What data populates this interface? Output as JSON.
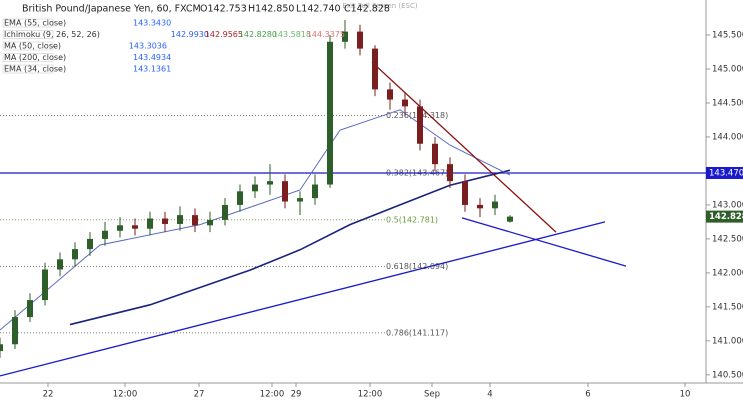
{
  "chart_data": {
    "type": "candlestick",
    "title": "British Pound/Japanese Yen, 60, FXCM",
    "ohlc_text": [
      "O142.753",
      "H142.850",
      "L142.740",
      "C142.828"
    ],
    "exit_text": "Exit Full Screen (ESC)",
    "indicators": [
      {
        "name": "EMA (55, close)",
        "values": [
          "143.3430"
        ],
        "color": "#2962ff"
      },
      {
        "name": "Ichimoku (9, 26, 52, 26)",
        "values": [
          "142.9930",
          "142.9565",
          "142.8280",
          "143.5818",
          "144.3375"
        ],
        "colors": [
          "#2962ff",
          "#b71c1c",
          "#43a047",
          "#66bb6a",
          "#e57373"
        ]
      },
      {
        "name": "MA (50, close)",
        "values": [
          "143.3036"
        ],
        "color": "#2962ff"
      },
      {
        "name": "MA (200, close)",
        "values": [
          "143.4934"
        ],
        "color": "#2962ff"
      },
      {
        "name": "EMA (34, close)",
        "values": [
          "143.1361"
        ],
        "color": "#2962ff"
      }
    ],
    "up_color": "#2e5e2a",
    "down_color": "#7a1f1f",
    "x": [
      0,
      3,
      6,
      9,
      12,
      15,
      18,
      21,
      24,
      27,
      30,
      33,
      36,
      39,
      42,
      45,
      48,
      51,
      54,
      57,
      60,
      63,
      66,
      69,
      72,
      75,
      78,
      81,
      84,
      87,
      90,
      93,
      96,
      99,
      102
    ],
    "open": [
      140.85,
      140.95,
      141.35,
      141.6,
      142.05,
      142.2,
      142.35,
      142.5,
      142.62,
      142.7,
      142.65,
      142.8,
      142.72,
      142.85,
      142.7,
      142.78,
      143.0,
      143.2,
      143.3,
      143.35,
      143.05,
      143.1,
      143.3,
      145.4,
      145.55,
      145.3,
      144.7,
      144.55,
      144.45,
      143.9,
      143.6,
      143.35,
      143.0,
      142.95,
      142.753
    ],
    "high": [
      141.05,
      141.45,
      141.7,
      142.15,
      142.3,
      142.45,
      142.6,
      142.75,
      142.82,
      142.8,
      142.9,
      142.9,
      142.98,
      142.95,
      142.9,
      143.1,
      143.3,
      143.42,
      143.6,
      143.45,
      143.2,
      143.45,
      145.5,
      145.72,
      145.65,
      145.35,
      144.8,
      144.65,
      144.55,
      144.0,
      143.7,
      143.45,
      143.1,
      143.15,
      142.85
    ],
    "low": [
      140.75,
      140.88,
      141.28,
      141.52,
      141.95,
      142.1,
      142.25,
      142.4,
      142.52,
      142.55,
      142.55,
      142.6,
      142.62,
      142.6,
      142.6,
      142.7,
      142.9,
      143.1,
      143.15,
      142.95,
      142.85,
      143.0,
      143.25,
      145.3,
      145.2,
      144.6,
      144.4,
      144.3,
      143.8,
      143.5,
      143.25,
      142.9,
      142.82,
      142.85,
      142.74
    ],
    "close": [
      140.95,
      141.35,
      141.6,
      142.05,
      142.2,
      142.35,
      142.5,
      142.62,
      142.7,
      142.65,
      142.8,
      142.72,
      142.85,
      142.7,
      142.78,
      143.0,
      143.2,
      143.3,
      143.35,
      143.05,
      143.1,
      143.3,
      145.4,
      145.55,
      145.3,
      144.7,
      144.55,
      144.45,
      143.9,
      143.6,
      143.35,
      143.0,
      142.95,
      143.05,
      142.828
    ],
    "overlays": [
      {
        "name": "MA (200, close)",
        "color": "#1a237e",
        "width": 1.6,
        "x": [
          14,
          30,
          50,
          60,
          70,
          80,
          90,
          102
        ],
        "values": [
          141.24,
          141.53,
          142.04,
          142.34,
          142.71,
          143.0,
          143.29,
          143.51
        ]
      },
      {
        "name": "EMA (55, close)",
        "color": "#5c6bc0",
        "width": 1,
        "x": [
          0,
          20,
          40,
          60,
          68,
          80,
          90,
          102
        ],
        "values": [
          141.16,
          142.41,
          142.71,
          143.22,
          144.1,
          144.4,
          143.88,
          143.44
        ]
      }
    ],
    "trendlines": [
      {
        "color": "#1a1acc",
        "x": [
          0,
          121
        ],
        "values": [
          140.485,
          142.75
        ]
      },
      {
        "color": "#1a1acc",
        "x": [
          92.4,
          125.2
        ],
        "values": [
          142.81,
          142.1
        ]
      },
      {
        "color": "#8b1010",
        "x": [
          74.4,
          111.2
        ],
        "values": [
          145.1,
          142.6
        ]
      }
    ],
    "fib_levels": [
      {
        "value": 144.318,
        "label": "0.236(144.318)",
        "color": "#555"
      },
      {
        "value": 143.467,
        "label": "0.382(143.467)",
        "color": "#555"
      },
      {
        "value": 142.781,
        "label": "0.5(142.781)",
        "color": "#6a9a3a"
      },
      {
        "value": 142.094,
        "label": "0.618(142.094)",
        "color": "#555"
      },
      {
        "value": 141.117,
        "label": "0.786(141.117)",
        "color": "#555"
      }
    ],
    "hline": {
      "value": 143.47,
      "label": "143.470",
      "color": "#1a1acc"
    },
    "last_price": {
      "value": 142.828,
      "label": "142.828",
      "color": "#2e5e2a"
    },
    "xlim": [
      0,
      141.2
    ],
    "ylim": [
      140.38,
      146.015
    ],
    "yticks": [
      {
        "value": 140.5,
        "label": "140.500"
      },
      {
        "value": 141,
        "label": "141.000"
      },
      {
        "value": 141.5,
        "label": "141.500"
      },
      {
        "value": 142,
        "label": "142.000"
      },
      {
        "value": 142.5,
        "label": "142.500"
      },
      {
        "value": 143,
        "label": "143.000"
      },
      {
        "value": 143.5,
        "label": "143.500"
      },
      {
        "value": 144,
        "label": "144.000"
      },
      {
        "value": 144.5,
        "label": "144.500"
      },
      {
        "value": 145,
        "label": "145.000"
      },
      {
        "value": 145.5,
        "label": "145.500"
      }
    ],
    "xticks": [
      {
        "value": 9.6,
        "label": "22"
      },
      {
        "value": 25,
        "label": "12:00"
      },
      {
        "value": 39.8,
        "label": "27"
      },
      {
        "value": 54.4,
        "label": "12:00"
      },
      {
        "value": 59.2,
        "label": "29"
      },
      {
        "value": 74,
        "label": "12:00"
      },
      {
        "value": 86.4,
        "label": "Sep"
      },
      {
        "value": 98,
        "label": "4"
      },
      {
        "value": 117.6,
        "label": "6"
      },
      {
        "value": 137,
        "label": "10"
      }
    ]
  }
}
